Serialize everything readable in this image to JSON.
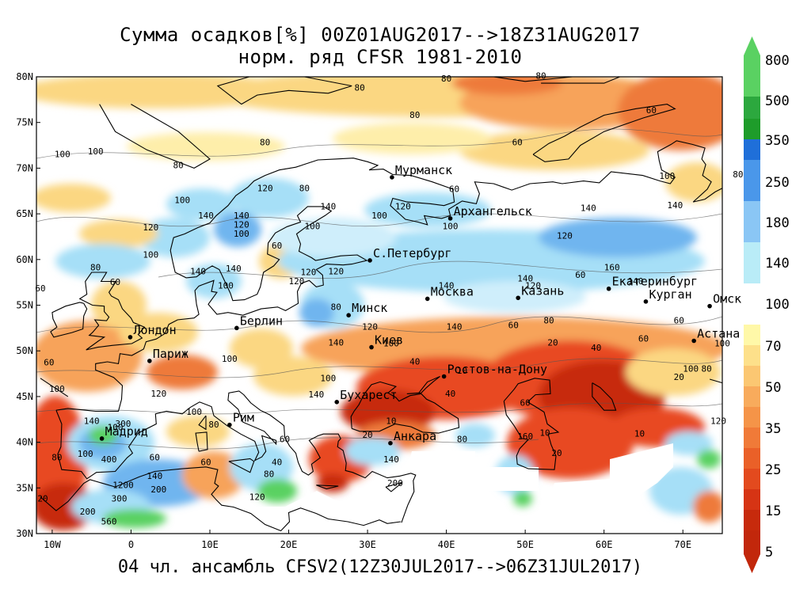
{
  "title_line1": "Сумма осадков[%] 00Z01AUG2017-->18Z31AUG2017",
  "title_line2": "норм. ряд CFSR 1981-2010",
  "footer": "04 чл. ансамбль CFSV2(12Z30JUL2017-->06Z31JUL2017)",
  "map": {
    "lon_range": [
      -12,
      75
    ],
    "lat_range": [
      30,
      80
    ],
    "lat_ticks": [
      "30N",
      "35N",
      "40N",
      "45N",
      "50N",
      "55N",
      "60N",
      "65N",
      "70N",
      "75N",
      "80N"
    ],
    "lon_ticks": [
      "10W",
      "0",
      "10E",
      "20E",
      "30E",
      "40E",
      "50E",
      "60E",
      "70E"
    ],
    "cities": [
      {
        "name": "Мурманск",
        "lon": 33.1,
        "lat": 69.0
      },
      {
        "name": "Архангельск",
        "lon": 40.5,
        "lat": 64.5
      },
      {
        "name": "С.Петербург",
        "lon": 30.3,
        "lat": 59.9
      },
      {
        "name": "Екатеринбург",
        "lon": 60.6,
        "lat": 56.8
      },
      {
        "name": "Москва",
        "lon": 37.6,
        "lat": 55.7
      },
      {
        "name": "Казань",
        "lon": 49.1,
        "lat": 55.8
      },
      {
        "name": "Курган",
        "lon": 65.3,
        "lat": 55.4
      },
      {
        "name": "Минск",
        "lon": 27.6,
        "lat": 53.9
      },
      {
        "name": "Омск",
        "lon": 73.4,
        "lat": 54.9
      },
      {
        "name": "Берлин",
        "lon": 13.4,
        "lat": 52.5
      },
      {
        "name": "Лондон",
        "lon": -0.1,
        "lat": 51.5
      },
      {
        "name": "Киев",
        "lon": 30.5,
        "lat": 50.4
      },
      {
        "name": "Астана",
        "lon": 71.4,
        "lat": 51.1
      },
      {
        "name": "Париж",
        "lon": 2.35,
        "lat": 48.9
      },
      {
        "name": "Ростов-на-Дону",
        "lon": 39.7,
        "lat": 47.2
      },
      {
        "name": "Бухарест",
        "lon": 26.1,
        "lat": 44.4
      },
      {
        "name": "Рим",
        "lon": 12.5,
        "lat": 41.9
      },
      {
        "name": "Мадрид",
        "lon": -3.7,
        "lat": 40.4
      },
      {
        "name": "Анкара",
        "lon": 32.9,
        "lat": 39.9
      }
    ],
    "contour_labels": [
      {
        "v": "80",
        "lon": 29,
        "lat": 78.5
      },
      {
        "v": "80",
        "lon": 40,
        "lat": 79.5
      },
      {
        "v": "80",
        "lon": 52,
        "lat": 79.8
      },
      {
        "v": "80",
        "lon": 36,
        "lat": 75.5
      },
      {
        "v": "80",
        "lon": 17,
        "lat": 72.5
      },
      {
        "v": "100",
        "lon": -8.7,
        "lat": 71.2
      },
      {
        "v": "100",
        "lon": -4.5,
        "lat": 71.5
      },
      {
        "v": "80",
        "lon": 6,
        "lat": 70
      },
      {
        "v": "60",
        "lon": 41,
        "lat": 67.4
      },
      {
        "v": "60",
        "lon": 49,
        "lat": 72.5
      },
      {
        "v": "60",
        "lon": 66,
        "lat": 76
      },
      {
        "v": "80",
        "lon": 77,
        "lat": 69
      },
      {
        "v": "100",
        "lon": 68,
        "lat": 68.8
      },
      {
        "v": "120",
        "lon": 17,
        "lat": 67.5
      },
      {
        "v": "80",
        "lon": 22,
        "lat": 67.5
      },
      {
        "v": "100",
        "lon": 6.5,
        "lat": 66.2
      },
      {
        "v": "140",
        "lon": 25,
        "lat": 65.5
      },
      {
        "v": "100",
        "lon": 31.5,
        "lat": 64.5
      },
      {
        "v": "120",
        "lon": 34.5,
        "lat": 65.5
      },
      {
        "v": "100",
        "lon": 40.5,
        "lat": 63.3
      },
      {
        "v": "140",
        "lon": 9.5,
        "lat": 64.5
      },
      {
        "v": "140",
        "lon": 14,
        "lat": 64.5
      },
      {
        "v": "120",
        "lon": 14,
        "lat": 63.5
      },
      {
        "v": "100",
        "lon": 14,
        "lat": 62.5
      },
      {
        "v": "100",
        "lon": 23,
        "lat": 63.3
      },
      {
        "v": "120",
        "lon": 2.5,
        "lat": 63.2
      },
      {
        "v": "60",
        "lon": 18.5,
        "lat": 61.2
      },
      {
        "v": "100",
        "lon": 2.5,
        "lat": 60.2
      },
      {
        "v": "140",
        "lon": 58,
        "lat": 65.3
      },
      {
        "v": "140",
        "lon": 69,
        "lat": 65.6
      },
      {
        "v": "120",
        "lon": 55,
        "lat": 62.3
      },
      {
        "v": "160",
        "lon": 61,
        "lat": 58.8
      },
      {
        "v": "140",
        "lon": 64,
        "lat": 57.3
      },
      {
        "v": "140",
        "lon": 50,
        "lat": 57.6
      },
      {
        "v": "120",
        "lon": 51,
        "lat": 56.8
      },
      {
        "v": "140",
        "lon": 40,
        "lat": 56.8
      },
      {
        "v": "120",
        "lon": 22.5,
        "lat": 58.3
      },
      {
        "v": "120",
        "lon": 26,
        "lat": 58.4
      },
      {
        "v": "140",
        "lon": 13,
        "lat": 58.7
      },
      {
        "v": "140",
        "lon": 8.5,
        "lat": 58.4
      },
      {
        "v": "100",
        "lon": 12,
        "lat": 56.8
      },
      {
        "v": "120",
        "lon": 21,
        "lat": 57.3
      },
      {
        "v": "80",
        "lon": 26,
        "lat": 54.5
      },
      {
        "v": "60",
        "lon": -11.5,
        "lat": 56.5
      },
      {
        "v": "60",
        "lon": -2,
        "lat": 57.2
      },
      {
        "v": "80",
        "lon": -4.5,
        "lat": 58.8
      },
      {
        "v": "120",
        "lon": 30.3,
        "lat": 52.3
      },
      {
        "v": "140",
        "lon": 41,
        "lat": 52.3
      },
      {
        "v": "100",
        "lon": 33,
        "lat": 50.5
      },
      {
        "v": "140",
        "lon": 26,
        "lat": 50.6
      },
      {
        "v": "60",
        "lon": 48.5,
        "lat": 52.5
      },
      {
        "v": "80",
        "lon": 53,
        "lat": 53
      },
      {
        "v": "60",
        "lon": 57,
        "lat": 58
      },
      {
        "v": "60",
        "lon": 69.5,
        "lat": 53
      },
      {
        "v": "40",
        "lon": 59,
        "lat": 50
      },
      {
        "v": "20",
        "lon": 53.5,
        "lat": 50.6
      },
      {
        "v": "60",
        "lon": 65,
        "lat": 51
      },
      {
        "v": "100",
        "lon": 75,
        "lat": 50.5
      },
      {
        "v": "20",
        "lon": 69.5,
        "lat": 46.8
      },
      {
        "v": "40",
        "lon": 36,
        "lat": 48.5
      },
      {
        "v": "10",
        "lon": 33,
        "lat": 42
      },
      {
        "v": "40",
        "lon": 40.5,
        "lat": 45
      },
      {
        "v": "60",
        "lon": 50,
        "lat": 44
      },
      {
        "v": "100",
        "lon": 71,
        "lat": 47.7
      },
      {
        "v": "80",
        "lon": 73,
        "lat": 47.7
      },
      {
        "v": "120",
        "lon": 74.5,
        "lat": 42
      },
      {
        "v": "10",
        "lon": 64.5,
        "lat": 40.6
      },
      {
        "v": "10",
        "lon": 52.5,
        "lat": 40.7
      },
      {
        "v": "20",
        "lon": 54,
        "lat": 38.5
      },
      {
        "v": "20",
        "lon": 30,
        "lat": 40.5
      },
      {
        "v": "60",
        "lon": 19.5,
        "lat": 40
      },
      {
        "v": "40",
        "lon": 18.5,
        "lat": 37.5
      },
      {
        "v": "80",
        "lon": 17.5,
        "lat": 36.2
      },
      {
        "v": "120",
        "lon": 16,
        "lat": 33.7
      },
      {
        "v": "140",
        "lon": 33,
        "lat": 37.8
      },
      {
        "v": "200",
        "lon": 33.5,
        "lat": 35.2
      },
      {
        "v": "60",
        "lon": 9.5,
        "lat": 37.5
      },
      {
        "v": "60",
        "lon": 3,
        "lat": 38
      },
      {
        "v": "140",
        "lon": 3,
        "lat": 36
      },
      {
        "v": "200",
        "lon": 3.5,
        "lat": 34.5
      },
      {
        "v": "300",
        "lon": -1.5,
        "lat": 33.5
      },
      {
        "v": "1200",
        "lon": -1,
        "lat": 35
      },
      {
        "v": "200",
        "lon": -5.5,
        "lat": 32.1
      },
      {
        "v": "560",
        "lon": -2.8,
        "lat": 31
      },
      {
        "v": "400",
        "lon": -2.8,
        "lat": 37.8
      },
      {
        "v": "100",
        "lon": -5.8,
        "lat": 38.4
      },
      {
        "v": "80",
        "lon": -9.4,
        "lat": 38
      },
      {
        "v": "20",
        "lon": -11.2,
        "lat": 33.5
      },
      {
        "v": "100",
        "lon": -9.4,
        "lat": 45.5
      },
      {
        "v": "60",
        "lon": -10.4,
        "lat": 48.4
      },
      {
        "v": "120",
        "lon": 3.5,
        "lat": 45
      },
      {
        "v": "300",
        "lon": -1,
        "lat": 41.7
      },
      {
        "v": "100",
        "lon": -2,
        "lat": 41.3
      },
      {
        "v": "140",
        "lon": -5,
        "lat": 42
      },
      {
        "v": "80",
        "lon": 10.5,
        "lat": 41.6
      },
      {
        "v": "100",
        "lon": 8,
        "lat": 43
      },
      {
        "v": "100",
        "lon": 12.5,
        "lat": 48.8
      },
      {
        "v": "100",
        "lon": 25,
        "lat": 46.7
      },
      {
        "v": "140",
        "lon": 23.5,
        "lat": 44.9
      },
      {
        "v": "160",
        "lon": 50,
        "lat": 40.3
      },
      {
        "v": "80",
        "lon": 42,
        "lat": 40
      },
      {
        "v": "10",
        "lon": 42,
        "lat": 47.5
      }
    ]
  }
}
